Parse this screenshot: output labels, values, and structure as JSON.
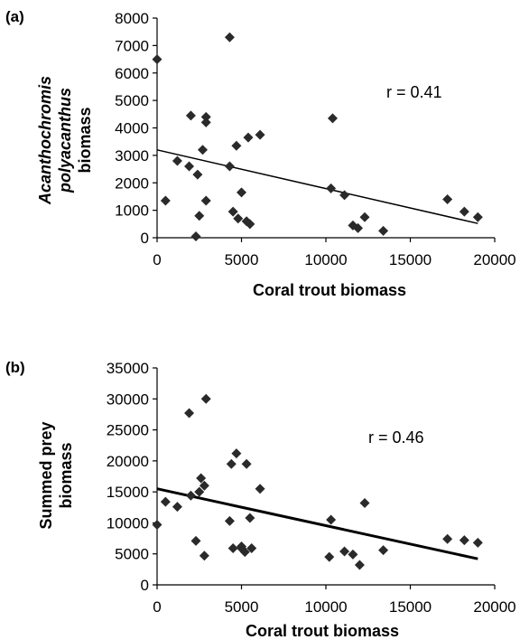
{
  "chart_data": [
    {
      "type": "scatter",
      "panel_label": "(a)",
      "xlabel": "Coral trout biomass",
      "ylabel_lines": [
        "Acanthochromis",
        "polyacanthus",
        "biomass"
      ],
      "xlim": [
        0,
        20000
      ],
      "ylim": [
        0,
        8000
      ],
      "xticks": [
        "0",
        "5000",
        "10000",
        "15000",
        "20000"
      ],
      "yticks": [
        "0",
        "1000",
        "2000",
        "3000",
        "4000",
        "5000",
        "6000",
        "7000",
        "8000"
      ],
      "annotation": "r = 0.41",
      "marker_color": "#2a2a2a",
      "trendline": [
        [
          0,
          3200
        ],
        [
          19000,
          520
        ]
      ],
      "points": [
        [
          0,
          6500
        ],
        [
          500,
          1350
        ],
        [
          1200,
          2800
        ],
        [
          1900,
          2600
        ],
        [
          2000,
          4450
        ],
        [
          2300,
          50
        ],
        [
          2400,
          2300
        ],
        [
          2500,
          800
        ],
        [
          2700,
          3200
        ],
        [
          2900,
          4400
        ],
        [
          2900,
          4200
        ],
        [
          2900,
          1350
        ],
        [
          4300,
          7300
        ],
        [
          4300,
          2600
        ],
        [
          4500,
          950
        ],
        [
          4700,
          3350
        ],
        [
          4800,
          700
        ],
        [
          5000,
          1650
        ],
        [
          5300,
          600
        ],
        [
          5400,
          3650
        ],
        [
          5500,
          500
        ],
        [
          6100,
          3750
        ],
        [
          10300,
          1800
        ],
        [
          10400,
          4350
        ],
        [
          11100,
          1550
        ],
        [
          11600,
          450
        ],
        [
          11900,
          350
        ],
        [
          12300,
          750
        ],
        [
          13400,
          250
        ],
        [
          17200,
          1400
        ],
        [
          18200,
          950
        ],
        [
          19000,
          750
        ]
      ]
    },
    {
      "type": "scatter",
      "panel_label": "(b)",
      "xlabel": "Coral trout biomass",
      "ylabel_lines": [
        "Summed prey",
        "biomass"
      ],
      "xlim": [
        0,
        20000
      ],
      "ylim": [
        0,
        35000
      ],
      "xticks": [
        "0",
        "5000",
        "10000",
        "15000",
        "20000"
      ],
      "yticks": [
        "0",
        "5000",
        "10000",
        "15000",
        "20000",
        "25000",
        "30000",
        "35000"
      ],
      "annotation": "r = 0.46",
      "marker_color": "#2a2a2a",
      "trendline": [
        [
          0,
          15500
        ],
        [
          19000,
          4200
        ]
      ],
      "points": [
        [
          0,
          9700
        ],
        [
          500,
          13400
        ],
        [
          1200,
          12600
        ],
        [
          1900,
          27700
        ],
        [
          2000,
          14400
        ],
        [
          2300,
          7100
        ],
        [
          2500,
          15000
        ],
        [
          2600,
          17200
        ],
        [
          2800,
          4700
        ],
        [
          2800,
          16000
        ],
        [
          2900,
          30000
        ],
        [
          4300,
          10300
        ],
        [
          4400,
          19500
        ],
        [
          4500,
          5900
        ],
        [
          4700,
          21200
        ],
        [
          5000,
          5900
        ],
        [
          5000,
          6200
        ],
        [
          5200,
          5300
        ],
        [
          5300,
          19500
        ],
        [
          5500,
          10800
        ],
        [
          5600,
          5900
        ],
        [
          6100,
          15500
        ],
        [
          10200,
          4500
        ],
        [
          10300,
          10500
        ],
        [
          11100,
          5400
        ],
        [
          11600,
          4900
        ],
        [
          12000,
          3200
        ],
        [
          12300,
          13200
        ],
        [
          13400,
          5600
        ],
        [
          17200,
          7400
        ],
        [
          18200,
          7200
        ],
        [
          19000,
          6800
        ]
      ]
    }
  ]
}
